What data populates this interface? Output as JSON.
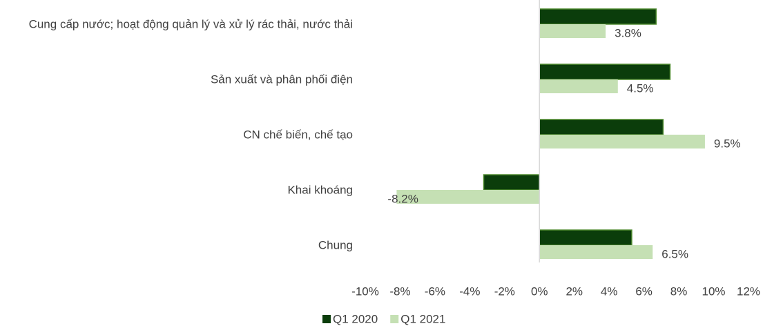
{
  "chart_data": {
    "type": "hbar",
    "categories": [
      "Cung cấp nước; hoạt động quản lý và xử lý rác thải, nước thải",
      "Sản xuất và phân phối điện",
      "CN chế biến, chế tạo",
      "Khai khoáng",
      "Chung"
    ],
    "series": [
      {
        "name": "Q1 2020",
        "color": "#0b3d0b",
        "values": [
          6.7,
          7.5,
          7.1,
          -3.2,
          5.3
        ]
      },
      {
        "name": "Q1 2021",
        "color": "#c5e0b4",
        "values": [
          3.8,
          4.5,
          9.5,
          -8.2,
          6.5
        ],
        "value_labels": [
          "3.8%",
          "4.5%",
          "9.5%",
          "-8.2%",
          "6.5%"
        ]
      }
    ],
    "xlim": [
      -10,
      12
    ],
    "xticks": [
      {
        "value": -10,
        "label": "-10%"
      },
      {
        "value": -8,
        "label": "-8%"
      },
      {
        "value": -6,
        "label": "-6%"
      },
      {
        "value": -4,
        "label": "-4%"
      },
      {
        "value": -2,
        "label": "-2%"
      },
      {
        "value": 0,
        "label": "0%"
      },
      {
        "value": 2,
        "label": "2%"
      },
      {
        "value": 4,
        "label": "4%"
      },
      {
        "value": 6,
        "label": "6%"
      },
      {
        "value": 8,
        "label": "8%"
      },
      {
        "value": 10,
        "label": "10%"
      },
      {
        "value": 12,
        "label": "12%"
      }
    ],
    "legend": "bottom"
  }
}
